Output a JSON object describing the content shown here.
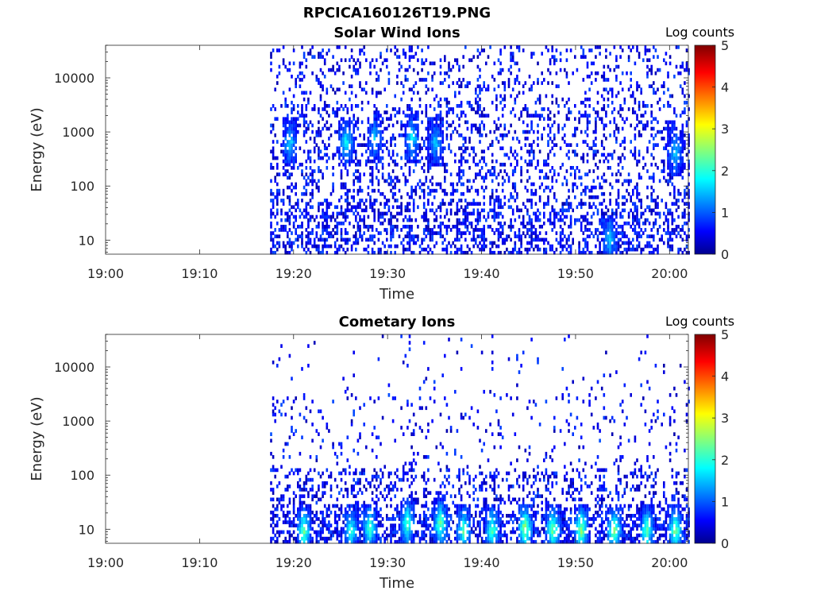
{
  "title": "RPCICA160126T19.PNG",
  "colorbar": {
    "label": "Log counts",
    "ticks": [
      "0",
      "1",
      "2",
      "3",
      "4",
      "5"
    ],
    "range": [
      0,
      5
    ],
    "colormap": "jet"
  },
  "chart_data": [
    {
      "type": "heatmap",
      "title": "Solar Wind Ions",
      "xlabel": "Time",
      "ylabel": "Energy (eV)",
      "x_ticks": [
        "19:00",
        "19:10",
        "19:20",
        "19:30",
        "19:40",
        "19:50",
        "20:00"
      ],
      "x_tick_minutes": [
        0,
        10,
        20,
        30,
        40,
        50,
        60
      ],
      "xlim_minutes": [
        0,
        62
      ],
      "y_ticks": [
        "10",
        "100",
        "1000",
        "10000"
      ],
      "y_tick_values": [
        10,
        100,
        1000,
        10000
      ],
      "ylim": [
        5.5,
        40000
      ],
      "y_scale": "log",
      "data_start_minute": 17.5,
      "data_end_minute": 62,
      "color_value_range": [
        0,
        5
      ],
      "hotspots": [
        {
          "minute": 19.5,
          "energy": 600,
          "value": 1.6
        },
        {
          "minute": 25.5,
          "energy": 600,
          "value": 1.8
        },
        {
          "minute": 28.5,
          "energy": 700,
          "value": 1.5
        },
        {
          "minute": 32.5,
          "energy": 700,
          "value": 1.7
        },
        {
          "minute": 35.0,
          "energy": 600,
          "value": 1.5
        },
        {
          "minute": 53.5,
          "energy": 10,
          "value": 1.6
        },
        {
          "minute": 60.5,
          "energy": 400,
          "value": 1.6
        }
      ]
    },
    {
      "type": "heatmap",
      "title": "Cometary Ions",
      "xlabel": "Time",
      "ylabel": "Energy (eV)",
      "x_ticks": [
        "19:00",
        "19:10",
        "19:20",
        "19:30",
        "19:40",
        "19:50",
        "20:00"
      ],
      "x_tick_minutes": [
        0,
        10,
        20,
        30,
        40,
        50,
        60
      ],
      "xlim_minutes": [
        0,
        62
      ],
      "y_ticks": [
        "10",
        "100",
        "1000",
        "10000"
      ],
      "y_tick_values": [
        10,
        100,
        1000,
        10000
      ],
      "ylim": [
        5.5,
        40000
      ],
      "y_scale": "log",
      "data_start_minute": 17.5,
      "data_end_minute": 62,
      "color_value_range": [
        0,
        5
      ],
      "hotspots": [
        {
          "minute": 21.0,
          "energy": 9,
          "value": 2.3
        },
        {
          "minute": 26.0,
          "energy": 9,
          "value": 2.0
        },
        {
          "minute": 28.0,
          "energy": 10,
          "value": 2.2
        },
        {
          "minute": 32.0,
          "energy": 12,
          "value": 2.2
        },
        {
          "minute": 35.5,
          "energy": 12,
          "value": 2.3
        },
        {
          "minute": 38.0,
          "energy": 9,
          "value": 2.2
        },
        {
          "minute": 41.0,
          "energy": 9,
          "value": 2.2
        },
        {
          "minute": 44.5,
          "energy": 10,
          "value": 2.6
        },
        {
          "minute": 47.5,
          "energy": 9,
          "value": 2.4
        },
        {
          "minute": 50.5,
          "energy": 9,
          "value": 2.5
        },
        {
          "minute": 54.0,
          "energy": 9,
          "value": 2.5
        },
        {
          "minute": 57.5,
          "energy": 9,
          "value": 2.3
        },
        {
          "minute": 60.5,
          "energy": 9,
          "value": 2.4
        }
      ]
    }
  ]
}
